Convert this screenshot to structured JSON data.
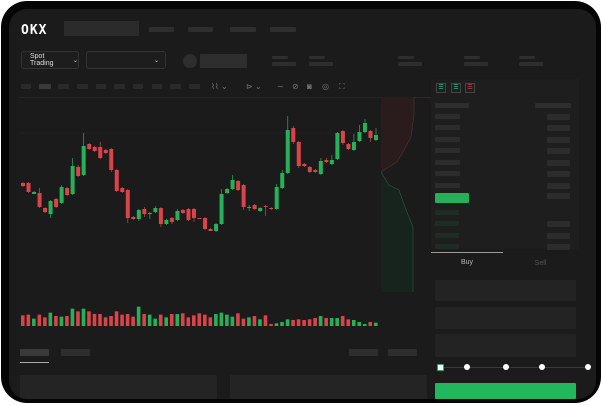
{
  "header": {
    "logo": "OKX"
  },
  "toolbar": {
    "market_select_label": "Spot Trading",
    "market_select_icon": "chevron-down-icon",
    "pair_select_icon": "chevron-down-icon"
  },
  "orderbook": {
    "view_icons": [
      "orderbook-both-icon",
      "orderbook-bids-icon",
      "orderbook-asks-icon"
    ]
  },
  "trade": {
    "tabs": [
      {
        "label": "Buy",
        "active": true
      },
      {
        "label": "Sell",
        "active": false
      }
    ],
    "slider_value_percent": 0,
    "buy_button_color": "#22b75c"
  },
  "colors": {
    "up": "#26b05a",
    "down": "#d9434a",
    "background": "#1b1b1b"
  },
  "chart_data": {
    "type": "candlestick",
    "candles": [
      [
        158,
        155,
        159,
        154
      ],
      [
        158,
        149,
        159,
        148
      ],
      [
        147,
        149,
        150,
        147
      ],
      [
        148,
        134,
        153,
        133
      ],
      [
        133,
        129,
        134,
        128
      ],
      [
        127,
        140,
        141,
        123
      ],
      [
        142,
        134,
        143,
        133
      ],
      [
        138,
        154,
        156,
        137
      ],
      [
        153,
        146,
        154,
        145
      ],
      [
        147,
        175,
        183,
        146
      ],
      [
        174,
        165,
        176,
        164
      ],
      [
        166,
        195,
        208,
        165
      ],
      [
        197,
        192,
        198,
        191
      ],
      [
        194,
        190,
        195,
        189
      ],
      [
        194,
        183,
        199,
        182
      ],
      [
        191,
        188,
        192,
        187
      ],
      [
        192,
        171,
        193,
        169
      ],
      [
        171,
        150,
        172,
        149
      ],
      [
        153,
        149,
        154,
        148
      ],
      [
        151,
        123,
        152,
        118
      ],
      [
        124,
        122,
        125,
        121
      ],
      [
        122,
        131,
        132,
        120
      ],
      [
        132,
        127,
        134,
        124
      ],
      [
        127,
        128,
        129,
        122
      ],
      [
        129,
        133,
        135,
        128
      ],
      [
        133,
        117,
        134,
        114
      ],
      [
        117,
        121,
        122,
        116
      ],
      [
        123,
        119,
        124,
        117
      ],
      [
        121,
        130,
        132,
        120
      ],
      [
        131,
        128,
        132,
        127
      ],
      [
        132,
        121,
        133,
        120
      ],
      [
        132,
        123,
        133,
        119
      ],
      [
        123,
        122,
        123,
        122
      ],
      [
        123,
        112,
        124,
        111
      ],
      [
        112,
        110,
        113,
        110
      ],
      [
        110,
        117,
        118,
        109
      ],
      [
        117,
        147,
        152,
        116
      ],
      [
        148,
        152,
        153,
        147
      ],
      [
        152,
        161,
        166,
        151
      ],
      [
        160,
        151,
        161,
        150
      ],
      [
        156,
        134,
        157,
        131
      ],
      [
        133,
        134,
        136,
        130
      ],
      [
        136,
        132,
        137,
        131
      ],
      [
        130,
        133,
        134,
        129
      ],
      [
        135,
        134,
        136,
        125
      ],
      [
        133,
        132,
        134,
        131
      ],
      [
        132,
        154,
        157,
        131
      ],
      [
        153,
        168,
        171,
        152
      ],
      [
        168,
        211,
        225,
        167
      ],
      [
        213,
        199,
        215,
        197
      ],
      [
        199,
        175,
        200,
        173
      ],
      [
        177,
        175,
        178,
        174
      ],
      [
        174,
        169,
        175,
        168
      ],
      [
        171,
        169,
        172,
        168
      ],
      [
        167,
        180,
        183,
        166
      ],
      [
        181,
        179,
        183,
        178
      ],
      [
        177,
        181,
        186,
        176
      ],
      [
        182,
        208,
        209,
        181
      ],
      [
        210,
        198,
        211,
        196
      ],
      [
        197,
        192,
        198,
        191
      ],
      [
        191,
        199,
        207,
        190
      ],
      [
        200,
        209,
        216,
        199
      ],
      [
        209,
        218,
        222,
        208
      ],
      [
        210,
        203,
        211,
        199
      ],
      [
        201,
        206,
        213,
        200
      ]
    ],
    "volume": [
      32,
      34,
      22,
      34,
      26,
      40,
      30,
      28,
      30,
      52,
      44,
      52,
      44,
      36,
      36,
      26,
      30,
      44,
      34,
      36,
      28,
      58,
      36,
      34,
      22,
      34,
      26,
      36,
      36,
      38,
      26,
      32,
      38,
      34,
      26,
      36,
      40,
      34,
      28,
      38,
      22,
      26,
      30,
      20,
      32,
      6,
      8,
      12,
      20,
      18,
      20,
      18,
      20,
      24,
      30,
      24,
      24,
      24,
      30,
      20,
      18,
      12,
      6,
      12,
      10
    ]
  }
}
